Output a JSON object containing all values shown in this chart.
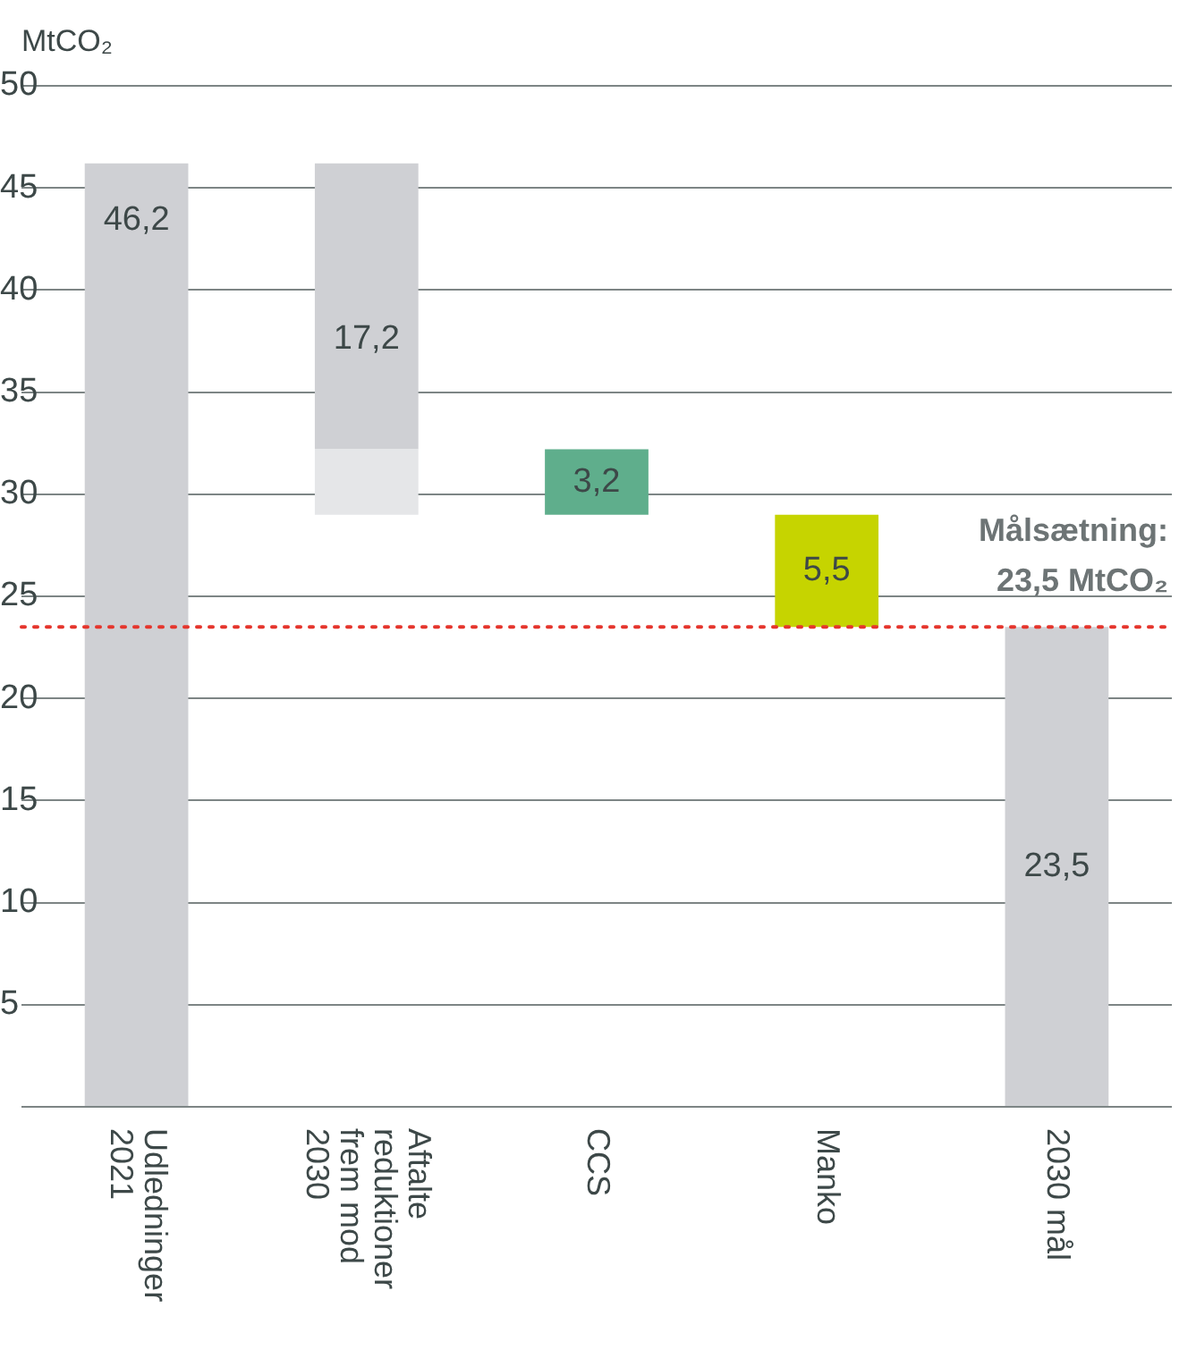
{
  "chart_data": {
    "type": "bar",
    "ylabel": "MtCO₂",
    "categories": [
      "Udledninger 2021",
      "Aftalte reduktioner frem mod 2030",
      "CCS",
      "Manko",
      "2030 mål"
    ],
    "series": [
      {
        "color": "#e5e6e8",
        "base": [
          null,
          29,
          null,
          null,
          null
        ],
        "values": [
          null,
          3.2,
          null,
          null,
          null
        ]
      },
      {
        "color": "#cfd0d4",
        "base": [
          0,
          32.2,
          null,
          null,
          0
        ],
        "values": [
          46.2,
          14,
          null,
          null,
          23.5
        ],
        "value_labels": [
          "46,2",
          null,
          null,
          null,
          "23,5"
        ]
      },
      {
        "color": "#5fae8c",
        "base": [
          null,
          null,
          29,
          null,
          null
        ],
        "values": [
          null,
          null,
          3.2,
          null,
          null
        ],
        "value_labels": [
          null,
          null,
          "3,2",
          null,
          null
        ]
      },
      {
        "color": "#c6d400",
        "base": [
          null,
          null,
          null,
          23.5,
          null
        ],
        "values": [
          null,
          null,
          null,
          5.5,
          null
        ],
        "value_labels": [
          null,
          null,
          null,
          "5,5",
          null
        ]
      }
    ],
    "annotations": [
      "17,2"
    ],
    "ylim": [
      0,
      50
    ],
    "yticks": [
      {
        "value": 0,
        "label": null
      },
      5,
      10,
      15,
      20,
      25,
      30,
      35,
      40,
      45,
      50
    ],
    "grid": "y",
    "ref_lines": [
      {
        "axis": "y",
        "value": 23.5,
        "label": "Målsætning: 23,5 MtCO₂",
        "color": "#e5352c",
        "line_style": "dotted"
      }
    ]
  }
}
